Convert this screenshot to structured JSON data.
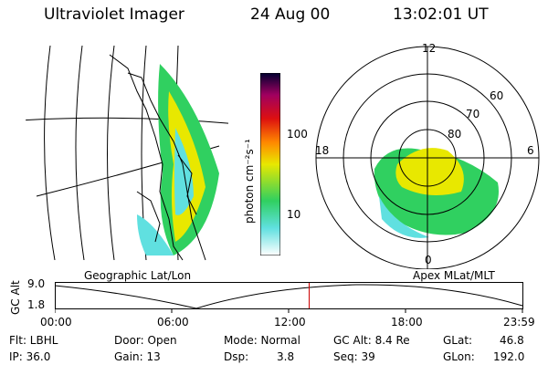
{
  "header": {
    "instrument": "Ultraviolet Imager",
    "date": "24 Aug 00",
    "time": "13:02:01 UT"
  },
  "colorbar": {
    "unit_label": "photon cm⁻²s⁻¹",
    "ticks": [
      "100",
      "10"
    ]
  },
  "polar_plot": {
    "mlt_labels": {
      "top": "12",
      "left": "18",
      "right": "6",
      "bottom": "0"
    },
    "lat_labels": [
      "60",
      "70",
      "80"
    ]
  },
  "captions": {
    "geo": "Geographic Lat/Lon",
    "apex": "Apex MLat/MLT"
  },
  "altitude_strip": {
    "y_label": "GC Alt",
    "y_ticks": [
      "9.0",
      "1.8"
    ],
    "time_ticks": [
      "00:00",
      "06:00",
      "12:00",
      "18:00",
      "23:59"
    ],
    "current_time_fraction": 0.542
  },
  "info": {
    "row1": {
      "flt": "Flt: LBHL",
      "door": "Door: Open",
      "mode": "Mode: Normal",
      "gcalt": "GC Alt: 8.4 Re",
      "glat_label": "GLat:",
      "glat_value": "46.8"
    },
    "row2": {
      "ip": "IP: 36.0",
      "gain": "Gain: 13",
      "dsp_label": "Dsp:",
      "dsp_value": "3.8",
      "seq": "Seq: 39",
      "glon_label": "GLon:",
      "glon_value": "192.0"
    }
  },
  "colors": {
    "current_time_marker": "#cc0000",
    "aurora_high": "#e8e800",
    "aurora_mid": "#30d060",
    "aurora_low": "#60e0e0"
  }
}
